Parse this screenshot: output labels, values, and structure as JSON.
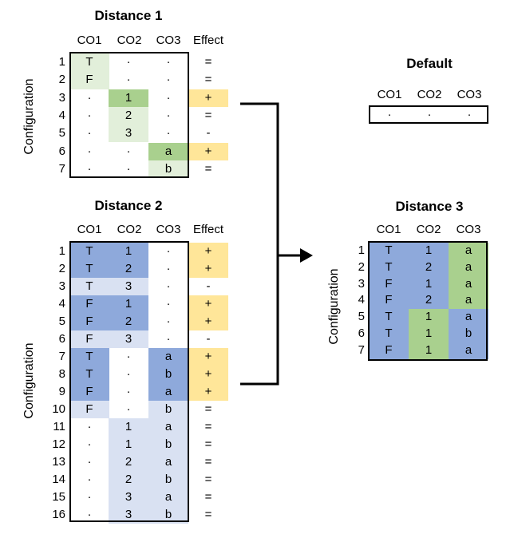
{
  "diagrams": [
    {
      "title": "Distance 1",
      "axis_label": "Configuration",
      "columns": [
        "CO1",
        "CO2",
        "CO3",
        "Effect"
      ],
      "rows": [
        {
          "n": "1",
          "cells": [
            "T",
            "·",
            "·"
          ],
          "effect": "="
        },
        {
          "n": "2",
          "cells": [
            "F",
            "·",
            "·"
          ],
          "effect": "="
        },
        {
          "n": "3",
          "cells": [
            "·",
            "1",
            "·"
          ],
          "effect": "+"
        },
        {
          "n": "4",
          "cells": [
            "·",
            "2",
            "·"
          ],
          "effect": "="
        },
        {
          "n": "5",
          "cells": [
            "·",
            "3",
            "·"
          ],
          "effect": "-"
        },
        {
          "n": "6",
          "cells": [
            "·",
            "·",
            "a"
          ],
          "effect": "+"
        },
        {
          "n": "7",
          "cells": [
            "·",
            "·",
            "b"
          ],
          "effect": "="
        }
      ]
    },
    {
      "title": "Distance 2",
      "axis_label": "Configuration",
      "columns": [
        "CO1",
        "CO2",
        "CO3",
        "Effect"
      ],
      "rows": [
        {
          "n": "1",
          "cells": [
            "T",
            "1",
            "·"
          ],
          "effect": "+"
        },
        {
          "n": "2",
          "cells": [
            "T",
            "2",
            "·"
          ],
          "effect": "+"
        },
        {
          "n": "3",
          "cells": [
            "T",
            "3",
            "·"
          ],
          "effect": "-"
        },
        {
          "n": "4",
          "cells": [
            "F",
            "1",
            "·"
          ],
          "effect": "+"
        },
        {
          "n": "5",
          "cells": [
            "F",
            "2",
            "·"
          ],
          "effect": "+"
        },
        {
          "n": "6",
          "cells": [
            "F",
            "3",
            "·"
          ],
          "effect": "-"
        },
        {
          "n": "7",
          "cells": [
            "T",
            "·",
            "a"
          ],
          "effect": "+"
        },
        {
          "n": "8",
          "cells": [
            "T",
            "·",
            "b"
          ],
          "effect": "+"
        },
        {
          "n": "9",
          "cells": [
            "F",
            "·",
            "a"
          ],
          "effect": "+"
        },
        {
          "n": "10",
          "cells": [
            "F",
            "·",
            "b"
          ],
          "effect": "="
        },
        {
          "n": "11",
          "cells": [
            "·",
            "1",
            "a"
          ],
          "effect": "="
        },
        {
          "n": "12",
          "cells": [
            "·",
            "1",
            "b"
          ],
          "effect": "="
        },
        {
          "n": "13",
          "cells": [
            "·",
            "2",
            "a"
          ],
          "effect": "="
        },
        {
          "n": "14",
          "cells": [
            "·",
            "2",
            "b"
          ],
          "effect": "="
        },
        {
          "n": "15",
          "cells": [
            "·",
            "3",
            "a"
          ],
          "effect": "="
        },
        {
          "n": "16",
          "cells": [
            "·",
            "3",
            "b"
          ],
          "effect": "="
        }
      ]
    },
    {
      "title": "Default",
      "columns": [
        "CO1",
        "CO2",
        "CO3"
      ],
      "rows": [
        {
          "cells": [
            "·",
            "·",
            "·"
          ]
        }
      ]
    },
    {
      "title": "Distance 3",
      "axis_label": "Configuration",
      "columns": [
        "CO1",
        "CO2",
        "CO3"
      ],
      "rows": [
        {
          "n": "1",
          "cells": [
            "T",
            "1",
            "a"
          ]
        },
        {
          "n": "2",
          "cells": [
            "T",
            "2",
            "a"
          ]
        },
        {
          "n": "3",
          "cells": [
            "F",
            "1",
            "a"
          ]
        },
        {
          "n": "4",
          "cells": [
            "F",
            "2",
            "a"
          ]
        },
        {
          "n": "5",
          "cells": [
            "T",
            "1",
            "a"
          ]
        },
        {
          "n": "6",
          "cells": [
            "T",
            "1",
            "b"
          ]
        },
        {
          "n": "7",
          "cells": [
            "F",
            "1",
            "a"
          ]
        }
      ]
    }
  ],
  "colors": {
    "green_light": "#e2efda",
    "green_mid": "#a9d08e",
    "blue_dark": "#8ea9db",
    "blue_light": "#d9e1f2",
    "effect_yellow": "#ffe699"
  }
}
